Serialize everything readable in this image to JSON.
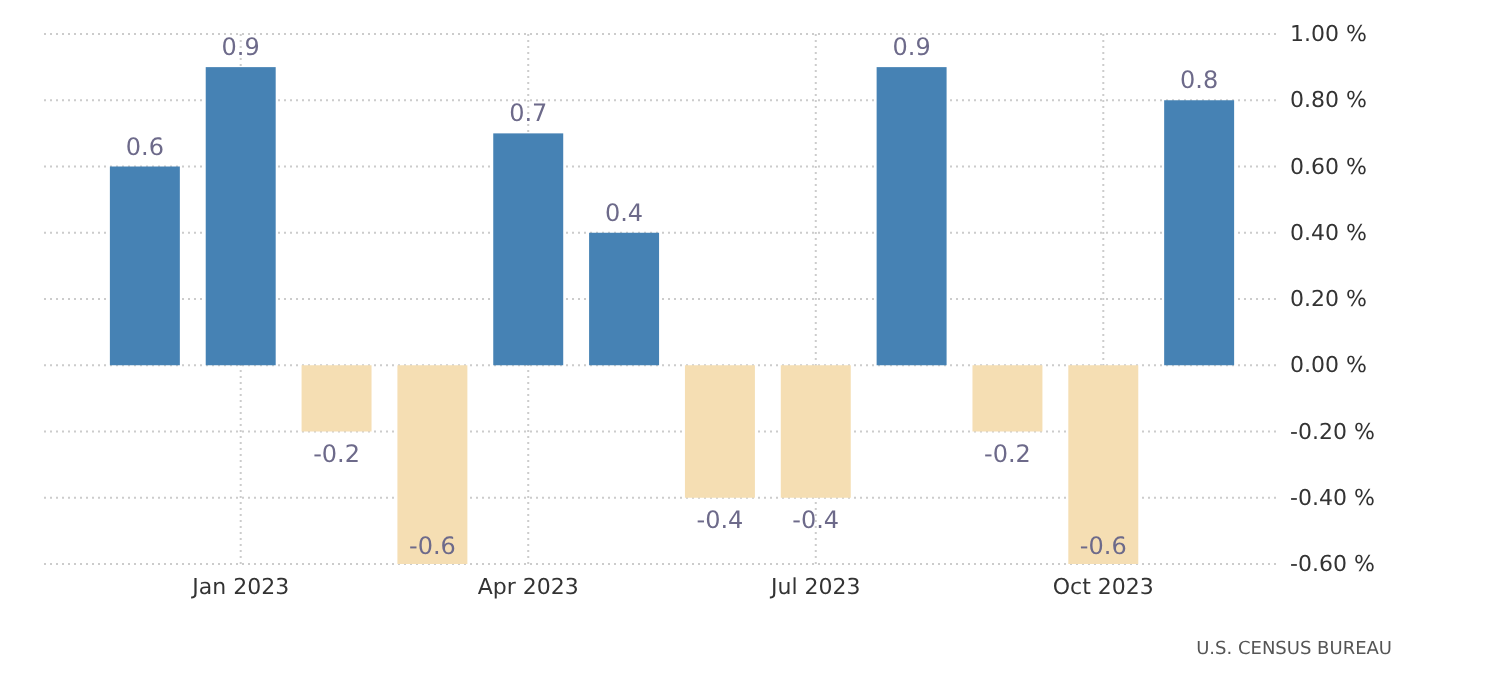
{
  "chart_data": {
    "type": "bar",
    "categories": [
      null,
      "Jan 2023",
      null,
      null,
      "Apr 2023",
      null,
      null,
      "Jul 2023",
      null,
      null,
      "Oct 2023",
      null
    ],
    "values": [
      0.6,
      0.9,
      -0.2,
      -0.6,
      0.7,
      0.4,
      -0.4,
      -0.4,
      0.9,
      -0.2,
      -0.6,
      0.8
    ],
    "colors": [
      "#4682b4",
      "#4682b4",
      "#f5deb3",
      "#f5deb3",
      "#4682b4",
      "#4682b4",
      "#f5deb3",
      "#f5deb3",
      "#4682b4",
      "#f5deb3",
      "#f5deb3",
      "#4682b4"
    ],
    "ylim": [
      -0.6,
      1.0
    ],
    "yticks": [
      {
        "value": 1.0,
        "label": "1.00 %"
      },
      {
        "value": 0.8,
        "label": "0.80 %"
      },
      {
        "value": 0.6,
        "label": "0.60 %"
      },
      {
        "value": 0.4,
        "label": "0.40 %"
      },
      {
        "value": 0.2,
        "label": "0.20 %"
      },
      {
        "value": 0,
        "label": "0.00 %"
      },
      {
        "value": -0.2,
        "label": "-0.20 %"
      },
      {
        "value": -0.4,
        "label": "-0.40 %"
      },
      {
        "value": -0.6,
        "label": "-0.60 %"
      }
    ],
    "grid": true,
    "data_labels": true,
    "annotations": [
      "U.S. CENSUS BUREAU"
    ]
  }
}
